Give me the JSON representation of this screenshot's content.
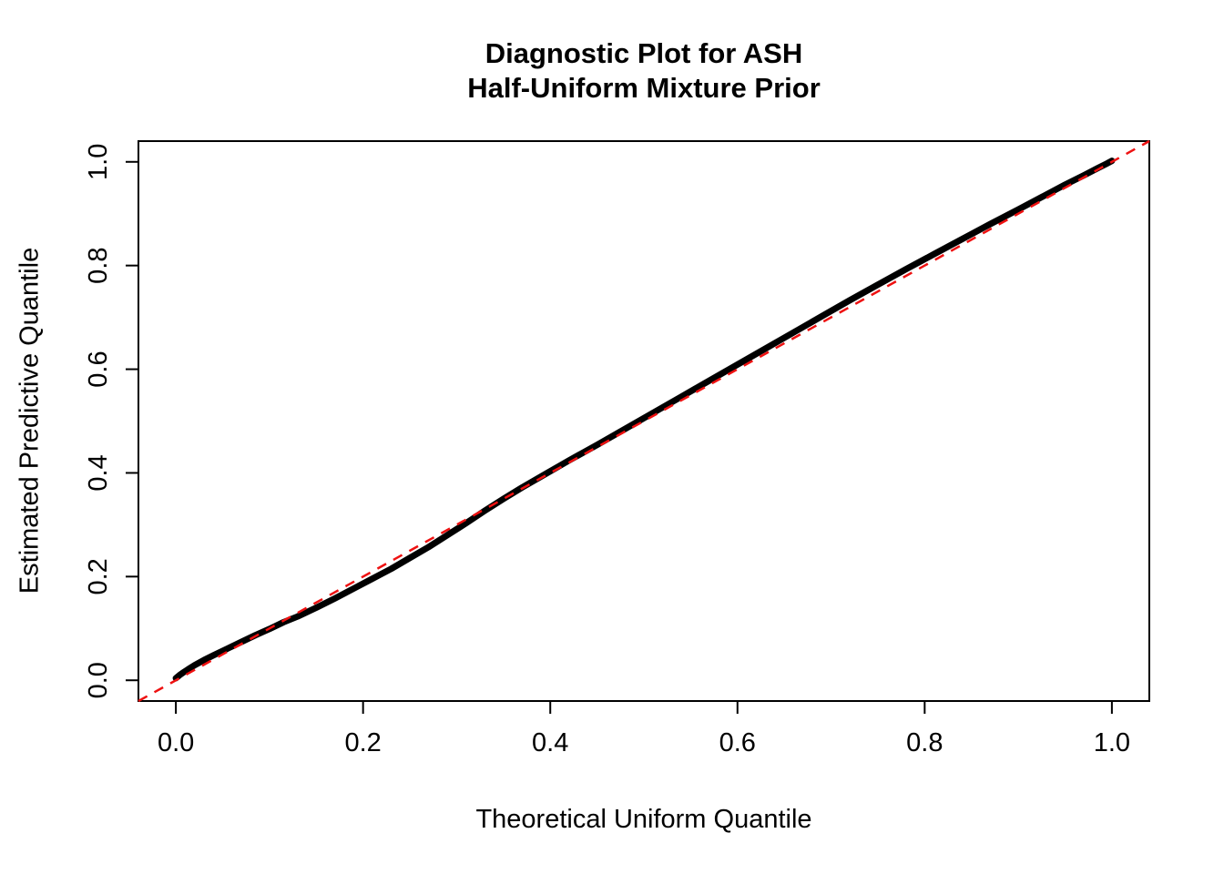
{
  "title": {
    "line1": "Diagnostic Plot for ASH",
    "line2": "Half-Uniform Mixture Prior"
  },
  "chart_data": {
    "type": "scatter",
    "title": "Diagnostic Plot for ASH / Half-Uniform Mixture Prior",
    "xlabel": "Theoretical Uniform Quantile",
    "ylabel": "Estimated Predictive Quantile",
    "xlim": [
      -0.04,
      1.04
    ],
    "ylim": [
      -0.04,
      1.04
    ],
    "grid": false,
    "legend": "none",
    "x_tick_values": [
      0.0,
      0.2,
      0.4,
      0.6,
      0.8,
      1.0
    ],
    "x_tick_labels": [
      "0.0",
      "0.2",
      "0.4",
      "0.6",
      "0.8",
      "1.0"
    ],
    "y_tick_values": [
      0.0,
      0.2,
      0.4,
      0.6,
      0.8,
      1.0
    ],
    "y_tick_labels": [
      "0.0",
      "0.2",
      "0.4",
      "0.6",
      "0.8",
      "1.0"
    ],
    "series": [
      {
        "name": "estimated-predictive-quantiles",
        "type": "thick-point-band",
        "color": "#000000",
        "points": [
          [
            0.0,
            0.004
          ],
          [
            0.004,
            0.01
          ],
          [
            0.008,
            0.015
          ],
          [
            0.013,
            0.021
          ],
          [
            0.02,
            0.029
          ],
          [
            0.03,
            0.039
          ],
          [
            0.04,
            0.048
          ],
          [
            0.055,
            0.061
          ],
          [
            0.07,
            0.074
          ],
          [
            0.085,
            0.087
          ],
          [
            0.1,
            0.099
          ],
          [
            0.115,
            0.112
          ],
          [
            0.13,
            0.123
          ],
          [
            0.15,
            0.14
          ],
          [
            0.17,
            0.158
          ],
          [
            0.19,
            0.177
          ],
          [
            0.21,
            0.196
          ],
          [
            0.23,
            0.215
          ],
          [
            0.25,
            0.236
          ],
          [
            0.27,
            0.257
          ],
          [
            0.29,
            0.28
          ],
          [
            0.31,
            0.303
          ],
          [
            0.33,
            0.327
          ],
          [
            0.35,
            0.35
          ],
          [
            0.37,
            0.372
          ],
          [
            0.395,
            0.398
          ],
          [
            0.42,
            0.424
          ],
          [
            0.45,
            0.454
          ],
          [
            0.48,
            0.485
          ],
          [
            0.51,
            0.516
          ],
          [
            0.54,
            0.547
          ],
          [
            0.57,
            0.578
          ],
          [
            0.6,
            0.609
          ],
          [
            0.63,
            0.64
          ],
          [
            0.66,
            0.671
          ],
          [
            0.69,
            0.702
          ],
          [
            0.72,
            0.733
          ],
          [
            0.75,
            0.763
          ],
          [
            0.78,
            0.793
          ],
          [
            0.81,
            0.822
          ],
          [
            0.84,
            0.851
          ],
          [
            0.87,
            0.88
          ],
          [
            0.9,
            0.908
          ],
          [
            0.925,
            0.932
          ],
          [
            0.95,
            0.956
          ],
          [
            0.97,
            0.974
          ],
          [
            0.985,
            0.988
          ],
          [
            0.995,
            0.997
          ],
          [
            1.0,
            1.002
          ]
        ]
      },
      {
        "name": "identity-reference-line",
        "type": "dashed-line",
        "color": "#ee1111",
        "points": [
          [
            -0.04,
            -0.04
          ],
          [
            1.04,
            1.04
          ]
        ]
      }
    ]
  },
  "colors": {
    "points": "#000000",
    "reference": "#ee1111",
    "axis": "#000000",
    "background": "#ffffff"
  }
}
